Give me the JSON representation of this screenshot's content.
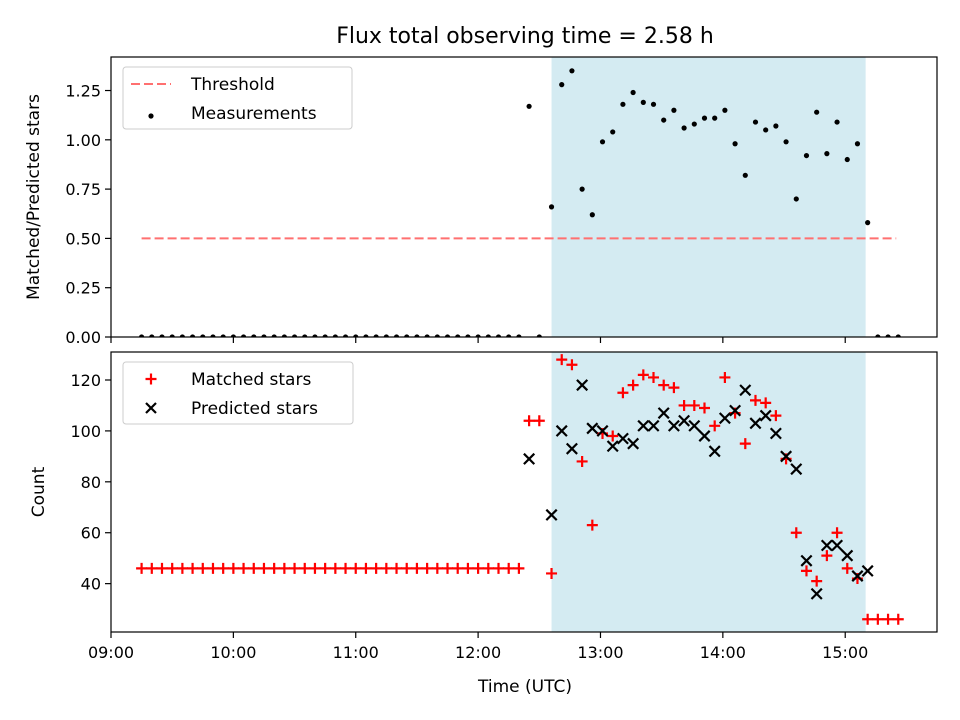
{
  "chart_data": [
    {
      "type": "scatter",
      "title": "Flux total observing time = 2.58 h",
      "xlabel": "",
      "ylabel": "Matched/Predicted stars",
      "x_axis": "time of day (UTC)",
      "xlim": [
        "09:00",
        "15:45"
      ],
      "ylim": [
        0,
        1.42
      ],
      "yticks": [
        "0.00",
        "0.25",
        "0.50",
        "0.75",
        "1.00",
        "1.25"
      ],
      "shaded_region": {
        "start": "12:36",
        "end": "15:10",
        "color": "#add8e6"
      },
      "legend": {
        "placement": "top-left",
        "entries": [
          "Threshold",
          "Measurements"
        ]
      },
      "threshold": {
        "name": "Threshold",
        "value": 0.5,
        "x_start": "09:15",
        "x_end": "15:25",
        "color": "#ff7070",
        "style": "dashed"
      },
      "series": [
        {
          "name": "Measurements",
          "color": "#000000",
          "marker": "dot",
          "points": [
            [
              "09:15",
              0
            ],
            [
              "09:20",
              0
            ],
            [
              "09:25",
              0
            ],
            [
              "09:30",
              0
            ],
            [
              "09:35",
              0
            ],
            [
              "09:40",
              0
            ],
            [
              "09:45",
              0
            ],
            [
              "09:50",
              0
            ],
            [
              "09:55",
              0
            ],
            [
              "10:00",
              0
            ],
            [
              "10:05",
              0
            ],
            [
              "10:10",
              0
            ],
            [
              "10:15",
              0
            ],
            [
              "10:20",
              0
            ],
            [
              "10:25",
              0
            ],
            [
              "10:30",
              0
            ],
            [
              "10:35",
              0
            ],
            [
              "10:40",
              0
            ],
            [
              "10:45",
              0
            ],
            [
              "10:50",
              0
            ],
            [
              "10:55",
              0
            ],
            [
              "11:00",
              0
            ],
            [
              "11:05",
              0
            ],
            [
              "11:10",
              0
            ],
            [
              "11:15",
              0
            ],
            [
              "11:20",
              0
            ],
            [
              "11:25",
              0
            ],
            [
              "11:30",
              0
            ],
            [
              "11:35",
              0
            ],
            [
              "11:40",
              0
            ],
            [
              "11:45",
              0
            ],
            [
              "11:50",
              0
            ],
            [
              "11:55",
              0
            ],
            [
              "12:00",
              0
            ],
            [
              "12:05",
              0
            ],
            [
              "12:10",
              0
            ],
            [
              "12:15",
              0
            ],
            [
              "12:20",
              0
            ],
            [
              "12:25",
              1.17
            ],
            [
              "12:30",
              0
            ],
            [
              "12:36",
              0.66
            ],
            [
              "12:41",
              1.28
            ],
            [
              "12:46",
              1.35
            ],
            [
              "12:51",
              0.75
            ],
            [
              "12:56",
              0.62
            ],
            [
              "13:01",
              0.99
            ],
            [
              "13:06",
              1.04
            ],
            [
              "13:11",
              1.18
            ],
            [
              "13:16",
              1.24
            ],
            [
              "13:21",
              1.19
            ],
            [
              "13:26",
              1.18
            ],
            [
              "13:31",
              1.1
            ],
            [
              "13:36",
              1.15
            ],
            [
              "13:41",
              1.06
            ],
            [
              "13:46",
              1.08
            ],
            [
              "13:51",
              1.11
            ],
            [
              "13:56",
              1.11
            ],
            [
              "14:01",
              1.15
            ],
            [
              "14:06",
              0.98
            ],
            [
              "14:11",
              0.82
            ],
            [
              "14:16",
              1.09
            ],
            [
              "14:21",
              1.05
            ],
            [
              "14:26",
              1.07
            ],
            [
              "14:31",
              0.99
            ],
            [
              "14:36",
              0.7
            ],
            [
              "14:41",
              0.92
            ],
            [
              "14:46",
              1.14
            ],
            [
              "14:51",
              0.93
            ],
            [
              "14:56",
              1.09
            ],
            [
              "15:01",
              0.9
            ],
            [
              "15:06",
              0.98
            ],
            [
              "15:11",
              0.58
            ],
            [
              "15:16",
              0
            ],
            [
              "15:21",
              0
            ],
            [
              "15:26",
              0
            ]
          ]
        }
      ]
    },
    {
      "type": "scatter",
      "title": "",
      "xlabel": "Time (UTC)",
      "ylabel": "Count",
      "x_axis": "time of day (UTC)",
      "xlim": [
        "09:00",
        "15:45"
      ],
      "ylim": [
        21,
        131
      ],
      "xticks": [
        "09:00",
        "10:00",
        "11:00",
        "12:00",
        "13:00",
        "14:00",
        "15:00"
      ],
      "yticks": [
        "40",
        "60",
        "80",
        "100",
        "120"
      ],
      "shaded_region": {
        "start": "12:36",
        "end": "15:10",
        "color": "#add8e6"
      },
      "legend": {
        "placement": "top-left",
        "entries": [
          "Matched stars",
          "Predicted stars"
        ]
      },
      "series": [
        {
          "name": "Matched stars",
          "color": "#ff0000",
          "marker": "plus",
          "points": [
            [
              "09:15",
              46
            ],
            [
              "09:20",
              46
            ],
            [
              "09:25",
              46
            ],
            [
              "09:30",
              46
            ],
            [
              "09:35",
              46
            ],
            [
              "09:40",
              46
            ],
            [
              "09:45",
              46
            ],
            [
              "09:50",
              46
            ],
            [
              "09:55",
              46
            ],
            [
              "10:00",
              46
            ],
            [
              "10:05",
              46
            ],
            [
              "10:10",
              46
            ],
            [
              "10:15",
              46
            ],
            [
              "10:20",
              46
            ],
            [
              "10:25",
              46
            ],
            [
              "10:30",
              46
            ],
            [
              "10:35",
              46
            ],
            [
              "10:40",
              46
            ],
            [
              "10:45",
              46
            ],
            [
              "10:50",
              46
            ],
            [
              "10:55",
              46
            ],
            [
              "11:00",
              46
            ],
            [
              "11:05",
              46
            ],
            [
              "11:10",
              46
            ],
            [
              "11:15",
              46
            ],
            [
              "11:20",
              46
            ],
            [
              "11:25",
              46
            ],
            [
              "11:30",
              46
            ],
            [
              "11:35",
              46
            ],
            [
              "11:40",
              46
            ],
            [
              "11:45",
              46
            ],
            [
              "11:50",
              46
            ],
            [
              "11:55",
              46
            ],
            [
              "12:00",
              46
            ],
            [
              "12:05",
              46
            ],
            [
              "12:10",
              46
            ],
            [
              "12:15",
              46
            ],
            [
              "12:20",
              46
            ],
            [
              "12:25",
              104
            ],
            [
              "12:30",
              104
            ],
            [
              "12:36",
              44
            ],
            [
              "12:41",
              128
            ],
            [
              "12:46",
              126
            ],
            [
              "12:51",
              88
            ],
            [
              "12:56",
              63
            ],
            [
              "13:01",
              99
            ],
            [
              "13:06",
              98
            ],
            [
              "13:11",
              115
            ],
            [
              "13:16",
              118
            ],
            [
              "13:21",
              122
            ],
            [
              "13:26",
              121
            ],
            [
              "13:31",
              118
            ],
            [
              "13:36",
              117
            ],
            [
              "13:41",
              110
            ],
            [
              "13:46",
              110
            ],
            [
              "13:51",
              109
            ],
            [
              "13:56",
              102
            ],
            [
              "14:01",
              121
            ],
            [
              "14:06",
              107
            ],
            [
              "14:11",
              95
            ],
            [
              "14:16",
              112
            ],
            [
              "14:21",
              111
            ],
            [
              "14:26",
              106
            ],
            [
              "14:31",
              89
            ],
            [
              "14:36",
              60
            ],
            [
              "14:41",
              45
            ],
            [
              "14:46",
              41
            ],
            [
              "14:51",
              51
            ],
            [
              "14:56",
              60
            ],
            [
              "15:01",
              46
            ],
            [
              "15:06",
              42
            ],
            [
              "15:11",
              26
            ],
            [
              "15:16",
              26
            ],
            [
              "15:21",
              26
            ],
            [
              "15:26",
              26
            ]
          ]
        },
        {
          "name": "Predicted stars",
          "color": "#000000",
          "marker": "x",
          "points": [
            [
              "12:25",
              89
            ],
            [
              "12:36",
              67
            ],
            [
              "12:41",
              100
            ],
            [
              "12:46",
              93
            ],
            [
              "12:51",
              118
            ],
            [
              "12:56",
              101
            ],
            [
              "13:01",
              100
            ],
            [
              "13:06",
              94
            ],
            [
              "13:11",
              97
            ],
            [
              "13:16",
              95
            ],
            [
              "13:21",
              102
            ],
            [
              "13:26",
              102
            ],
            [
              "13:31",
              107
            ],
            [
              "13:36",
              102
            ],
            [
              "13:41",
              104
            ],
            [
              "13:46",
              102
            ],
            [
              "13:51",
              98
            ],
            [
              "13:56",
              92
            ],
            [
              "14:01",
              105
            ],
            [
              "14:06",
              108
            ],
            [
              "14:11",
              116
            ],
            [
              "14:16",
              103
            ],
            [
              "14:21",
              106
            ],
            [
              "14:26",
              99
            ],
            [
              "14:31",
              90
            ],
            [
              "14:36",
              85
            ],
            [
              "14:41",
              49
            ],
            [
              "14:46",
              36
            ],
            [
              "14:51",
              55
            ],
            [
              "14:56",
              55
            ],
            [
              "15:01",
              51
            ],
            [
              "15:06",
              43
            ],
            [
              "15:11",
              45
            ]
          ]
        }
      ]
    }
  ]
}
